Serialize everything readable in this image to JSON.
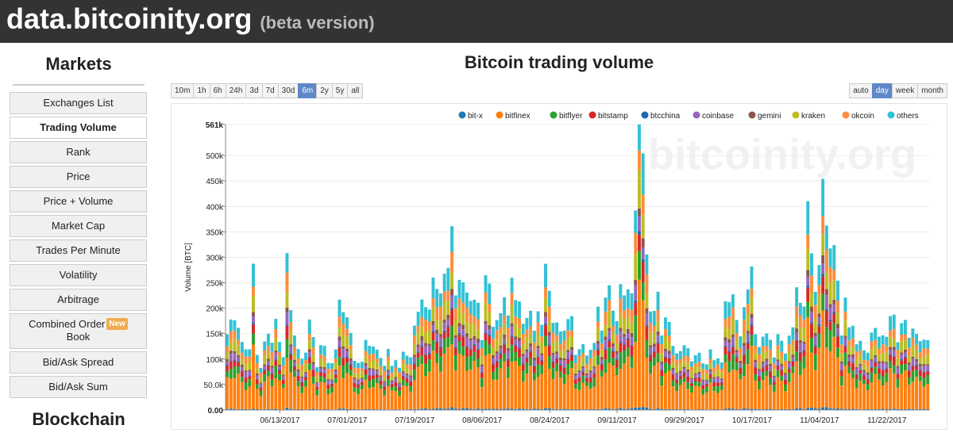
{
  "header": {
    "site": "data.bitcoinity.org",
    "beta": "(beta version)"
  },
  "sidebar": {
    "title": "Markets",
    "items": [
      {
        "label": "Exchanges List"
      },
      {
        "label": "Trading Volume"
      },
      {
        "label": "Rank"
      },
      {
        "label": "Price"
      },
      {
        "label": "Price + Volume"
      },
      {
        "label": "Market Cap"
      },
      {
        "label": "Trades Per Minute"
      },
      {
        "label": "Volatility"
      },
      {
        "label": "Arbitrage"
      },
      {
        "label": "Combined Order",
        "label2": "Book",
        "badge": "New"
      },
      {
        "label": "Bid/Ask Spread"
      },
      {
        "label": "Bid/Ask Sum"
      }
    ],
    "active_index": 1,
    "section2": "Blockchain"
  },
  "controls": {
    "ranges": [
      "10m",
      "1h",
      "6h",
      "24h",
      "3d",
      "7d",
      "30d",
      "6m",
      "2y",
      "5y",
      "all"
    ],
    "selected_range": "6m",
    "groupings": [
      "auto",
      "day",
      "week",
      "month"
    ],
    "selected_grouping": "day"
  },
  "watermark": "bitcoinity.org",
  "chart_data": {
    "type": "bar",
    "stacked": true,
    "title": "Bitcoin trading volume",
    "ylabel": "Volume [BTC]",
    "ylim": [
      0,
      561000
    ],
    "y_ticks": [
      "0.00",
      "50.0k",
      "100k",
      "150k",
      "200k",
      "250k",
      "300k",
      "350k",
      "400k",
      "450k",
      "500k",
      "561k"
    ],
    "x_tick_labels": [
      "06/13/2017",
      "07/01/2017",
      "07/19/2017",
      "08/06/2017",
      "08/24/2017",
      "09/11/2017",
      "09/29/2017",
      "10/17/2017",
      "11/04/2017",
      "11/22/2017"
    ],
    "legend_position": "top-right",
    "series_colors": [
      "#1f77b4",
      "#ff7f0e",
      "#2ca02c",
      "#d62728",
      "#1f66b0",
      "#9467bd",
      "#8c564b",
      "#bcbd22",
      "#fd8d3c",
      "#31c1d4"
    ],
    "series": [
      {
        "name": "bit-x"
      },
      {
        "name": "bitfinex"
      },
      {
        "name": "bitflyer"
      },
      {
        "name": "bitstamp"
      },
      {
        "name": "btcchina"
      },
      {
        "name": "coinbase"
      },
      {
        "name": "gemini"
      },
      {
        "name": "kraken"
      },
      {
        "name": "okcoin"
      },
      {
        "name": "others"
      }
    ],
    "start_date": "2017-05-30",
    "series_shares": [
      0.012,
      0.38,
      0.1,
      0.07,
      0.01,
      0.06,
      0.03,
      0.11,
      0.09,
      0.138
    ],
    "daily_totals": [
      140,
      190,
      185,
      150,
      130,
      130,
      120,
      265,
      110,
      90,
      130,
      140,
      140,
      190,
      125,
      100,
      335,
      200,
      135,
      120,
      110,
      110,
      165,
      150,
      90,
      120,
      120,
      100,
      95,
      110,
      215,
      210,
      180,
      140,
      100,
      100,
      90,
      130,
      135,
      130,
      110,
      100,
      95,
      120,
      80,
      100,
      90,
      110,
      100,
      110,
      175,
      180,
      210,
      220,
      200,
      240,
      240,
      250,
      260,
      260,
      380,
      240,
      240,
      240,
      250,
      220,
      200,
      210,
      150,
      260,
      230,
      170,
      190,
      180,
      210,
      200,
      270,
      200,
      210,
      185,
      180,
      180,
      160,
      210,
      160,
      270,
      250,
      180,
      160,
      150,
      170,
      180,
      170,
      110,
      130,
      125,
      100,
      125,
      140,
      190,
      150,
      240,
      250,
      180,
      175,
      270,
      220,
      220,
      240,
      420,
      560,
      480,
      330,
      200,
      180,
      230,
      160,
      180,
      160,
      130,
      120,
      110,
      120,
      130,
      100,
      100,
      110,
      100,
      90,
      110,
      100,
      110,
      90,
      200,
      225,
      240,
      165,
      140,
      220,
      240,
      260,
      150,
      135,
      140,
      140,
      145,
      110,
      140,
      130,
      120,
      150,
      150,
      240,
      230,
      200,
      380,
      320,
      250,
      270,
      430,
      390,
      330,
      300,
      250,
      160,
      220,
      150,
      170,
      140,
      130,
      110,
      120,
      160,
      150,
      140,
      160,
      145,
      170,
      190,
      145,
      165,
      165,
      150,
      170,
      140,
      130,
      150,
      140
    ]
  }
}
